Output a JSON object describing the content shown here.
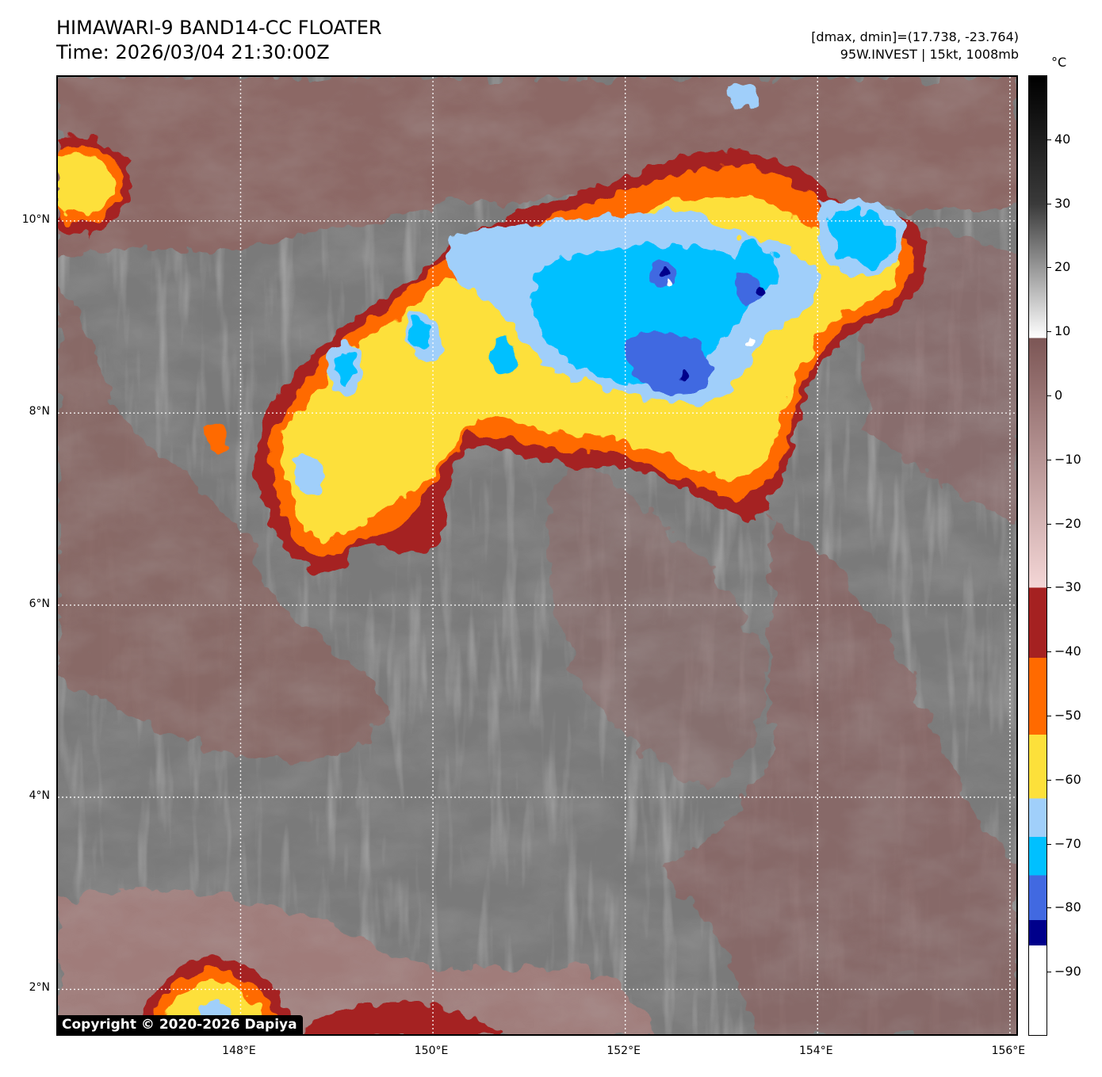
{
  "header": {
    "title": "HIMAWARI-9 BAND14-CC FLOATER",
    "time": "Time: 2026/03/04 21:30:00Z",
    "dminmax": "[dmax, dmin]=(17.738, -23.764)",
    "storm": "95W.INVEST | 15kt, 1008mb"
  },
  "copyright": "Copyright © 2020-2026 Dapiya",
  "map": {
    "lat_labels": [
      "10°N",
      "8°N",
      "6°N",
      "4°N",
      "2°N"
    ],
    "lon_labels": [
      "148°E",
      "150°E",
      "152°E",
      "154°E",
      "156°E"
    ],
    "lat_values": [
      10,
      8,
      6,
      4,
      2
    ],
    "lon_values": [
      148,
      150,
      152,
      154,
      156
    ],
    "extent": {
      "lon_min": 146.1,
      "lon_max": 156.1,
      "lat_min": 1.5,
      "lat_max": 11.5
    },
    "grid_lines": "dotted white"
  },
  "colorbar": {
    "unit": "°C",
    "ticks": [
      "40",
      "30",
      "20",
      "10",
      "0",
      "−10",
      "−20",
      "−30",
      "−40",
      "−50",
      "−60",
      "−70",
      "−80",
      "−90"
    ],
    "tick_values": [
      40,
      30,
      20,
      10,
      0,
      -10,
      -20,
      -30,
      -40,
      -50,
      -60,
      -70,
      -80,
      -90
    ],
    "range": [
      -100,
      50
    ],
    "stops": [
      {
        "value": 50,
        "color": "#000000"
      },
      {
        "value": 30,
        "color": "#3a3a3a"
      },
      {
        "value": 9,
        "color": "#ffffff"
      },
      {
        "value": 9,
        "color": "#7c5655"
      },
      {
        "value": -30,
        "color": "#f4d6d6"
      },
      {
        "value": -30,
        "color": "#a52121"
      },
      {
        "value": -41,
        "color": "#a52121"
      },
      {
        "value": -41,
        "color": "#ff6a00"
      },
      {
        "value": -53,
        "color": "#ff6a00"
      },
      {
        "value": -53,
        "color": "#fde03a"
      },
      {
        "value": -63,
        "color": "#fde03a"
      },
      {
        "value": -63,
        "color": "#a0cffa"
      },
      {
        "value": -69,
        "color": "#a0cffa"
      },
      {
        "value": -69,
        "color": "#00c0ff"
      },
      {
        "value": -75,
        "color": "#00c0ff"
      },
      {
        "value": -75,
        "color": "#4169e1"
      },
      {
        "value": -82,
        "color": "#4169e1"
      },
      {
        "value": -82,
        "color": "#00008b"
      },
      {
        "value": -86,
        "color": "#00008b"
      },
      {
        "value": -86,
        "color": "#ffffff"
      },
      {
        "value": -100,
        "color": "#ffffff"
      }
    ]
  }
}
